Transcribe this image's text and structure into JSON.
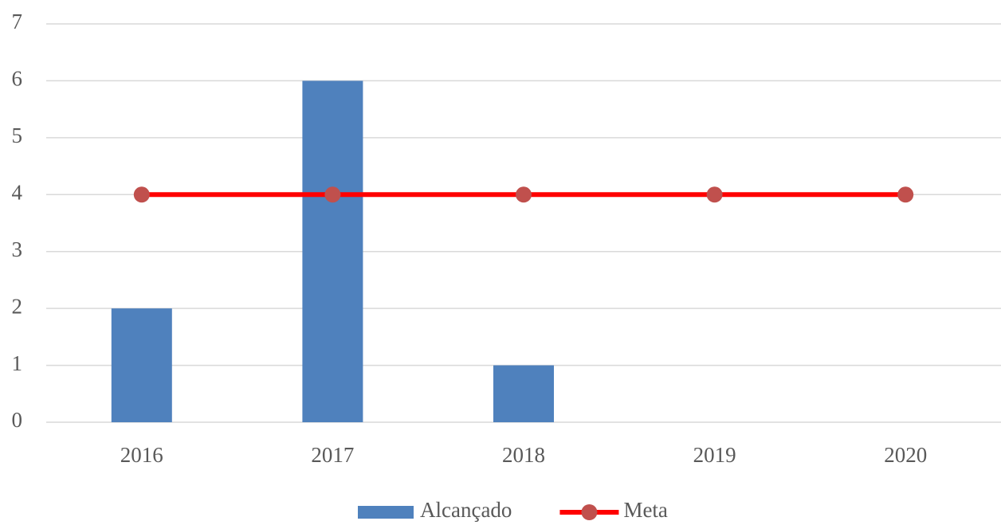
{
  "chart_data": {
    "type": "bar",
    "categories": [
      "2016",
      "2017",
      "2018",
      "2019",
      "2020"
    ],
    "series": [
      {
        "name": "Alcançado",
        "type": "bar",
        "color": "#4f81bd",
        "values": [
          2,
          6,
          1,
          0,
          0
        ]
      },
      {
        "name": "Meta",
        "type": "line",
        "color": "#ff0000",
        "marker_color": "#c0504d",
        "values": [
          4,
          4,
          4,
          4,
          4
        ]
      }
    ],
    "ylim": [
      0,
      7
    ],
    "yticks": [
      0,
      1,
      2,
      3,
      4,
      5,
      6,
      7
    ],
    "grid": true,
    "legend": "bottom"
  }
}
